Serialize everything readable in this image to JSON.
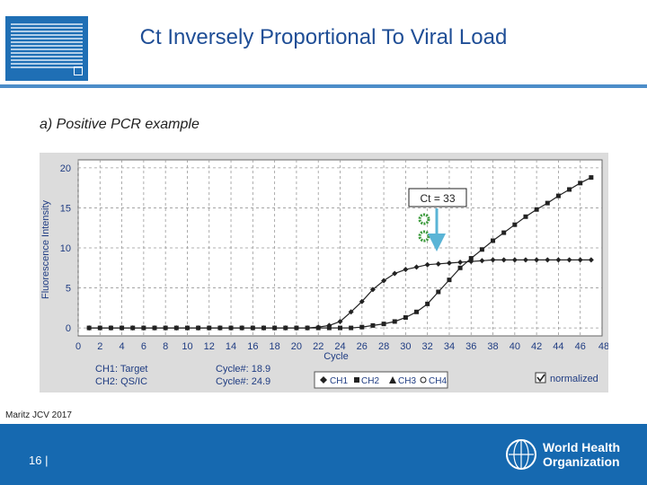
{
  "slide": {
    "title": "Ct Inversely Proportional To Viral Load",
    "subtitle": "a) Positive PCR example",
    "citation": "Maritz JCV 2017",
    "page_number": "16 |",
    "org_line1": "World Health",
    "org_line2": "Organization"
  },
  "colors": {
    "accent": "#1f6fb5",
    "plot_bg": "#ffffff",
    "series": "#222222",
    "arrow": "#5ab4d6"
  },
  "chart_data": {
    "type": "line",
    "xlabel": "Cycle",
    "ylabel": "Fluorescence Intensity",
    "xlim": [
      0,
      48
    ],
    "ylim": [
      -1,
      21
    ],
    "x_ticks": [
      0,
      2,
      4,
      6,
      8,
      10,
      12,
      14,
      16,
      18,
      20,
      22,
      24,
      26,
      28,
      30,
      32,
      34,
      36,
      38,
      40,
      42,
      44,
      46
    ],
    "x_tick_labels": [
      "0",
      "2",
      "4",
      "6",
      "8",
      "10",
      "12",
      "14",
      "16",
      "18",
      "20",
      "22",
      "24",
      "26",
      "28",
      "30",
      "32",
      "34",
      "36",
      "38",
      "40",
      "42",
      "44",
      "46"
    ],
    "y_ticks": [
      0,
      5,
      10,
      15,
      20
    ],
    "y_tick_labels": [
      "0",
      "5",
      "10",
      "15",
      "20"
    ],
    "x_last_label": "48",
    "grid": true,
    "x": [
      1,
      2,
      3,
      4,
      5,
      6,
      7,
      8,
      9,
      10,
      11,
      12,
      13,
      14,
      15,
      16,
      17,
      18,
      19,
      20,
      21,
      22,
      23,
      24,
      25,
      26,
      27,
      28,
      29,
      30,
      31,
      32,
      33,
      34,
      35,
      36,
      37,
      38,
      39,
      40,
      41,
      42,
      43,
      44,
      45,
      46,
      47
    ],
    "series": [
      {
        "name": "CH1",
        "values": [
          0,
          0,
          0,
          0,
          0,
          0,
          0,
          0,
          0,
          0,
          0,
          0,
          0,
          0,
          0,
          0,
          0,
          0,
          0,
          0,
          0,
          0.1,
          0.3,
          0.8,
          2.0,
          3.3,
          4.8,
          5.9,
          6.8,
          7.3,
          7.6,
          7.9,
          8.0,
          8.1,
          8.2,
          8.3,
          8.4,
          8.5,
          8.5,
          8.5,
          8.5,
          8.5,
          8.5,
          8.5,
          8.5,
          8.5,
          8.5
        ]
      },
      {
        "name": "CH2",
        "values": [
          0,
          0,
          0,
          0,
          0,
          0,
          0,
          0,
          0,
          0,
          0,
          0,
          0,
          0,
          0,
          0,
          0,
          0,
          0,
          0,
          0,
          0,
          0,
          0,
          0,
          0.1,
          0.3,
          0.5,
          0.8,
          1.3,
          2.0,
          3.0,
          4.5,
          6.0,
          7.5,
          8.7,
          9.8,
          10.9,
          11.9,
          12.9,
          13.9,
          14.8,
          15.6,
          16.5,
          17.3,
          18.1,
          18.8
        ]
      }
    ],
    "legend": [
      "CH1",
      "CH2",
      "CH3",
      "CH4"
    ],
    "legend_placement": "bottom-center",
    "annotation": "Ct = 33",
    "info_labels": [
      "CH1: Target",
      "CH2: QS/IC"
    ],
    "info_values": [
      "Cycle#: 18.9",
      "Cycle#: 24.9"
    ],
    "normalized_label": "normalized"
  }
}
